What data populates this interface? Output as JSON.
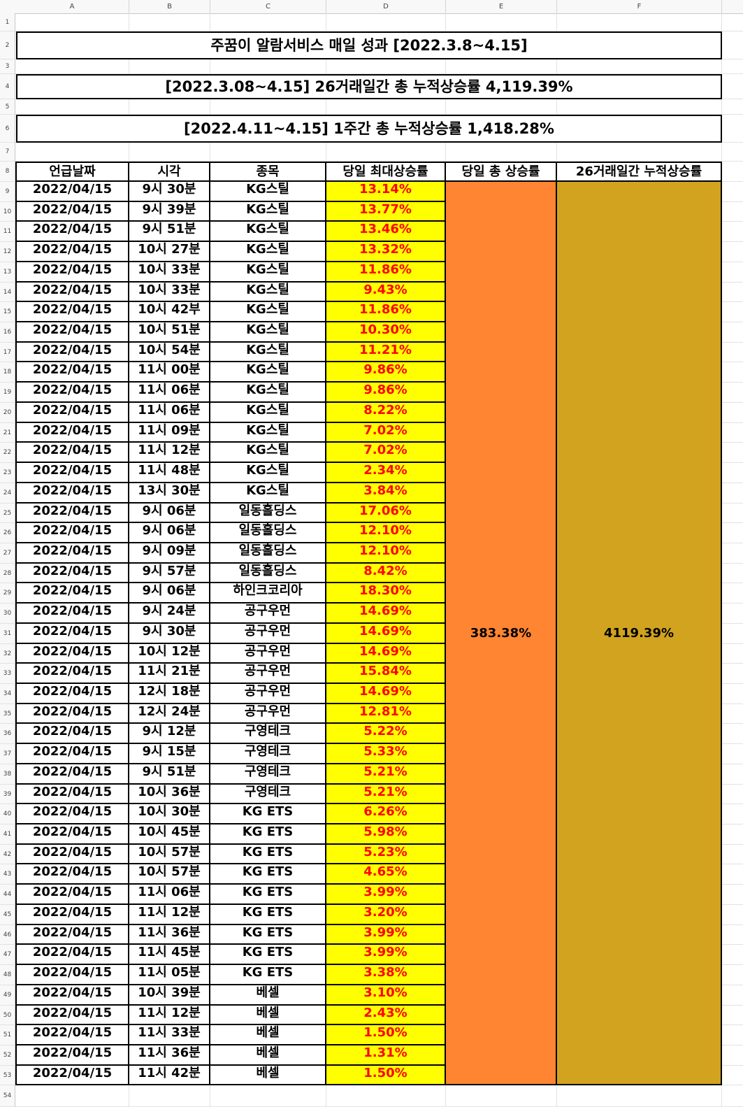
{
  "columns": [
    "A",
    "B",
    "C",
    "D",
    "E",
    "F"
  ],
  "row_numbers": [
    "1",
    "2",
    "3",
    "4",
    "5",
    "6",
    "7",
    "8",
    "9",
    "10",
    "11",
    "12",
    "13",
    "14",
    "15",
    "16",
    "17",
    "18",
    "19",
    "20",
    "21",
    "22",
    "23",
    "24",
    "25",
    "26",
    "27",
    "28",
    "29",
    "30",
    "31",
    "32",
    "33",
    "34",
    "35",
    "36",
    "37",
    "38",
    "39",
    "40",
    "41",
    "42",
    "43",
    "44",
    "45",
    "46",
    "47",
    "48",
    "49",
    "50",
    "51",
    "52",
    "53",
    "54"
  ],
  "titles": {
    "main": "주꿈이 알람서비스 매일 성과 [2022.3.8~4.15]",
    "cumulative": "[2022.3.08~4.15] 26거래일간 총 누적상승률 4,119.39%",
    "weekly": "[2022.4.11~4.15] 1주간 총 누적상승률 1,418.28%"
  },
  "table": {
    "headers": [
      "언급날짜",
      "시각",
      "종목",
      "당일 최대상승률",
      "당일 총 상승률",
      "26거래일간 누적상승률"
    ],
    "daily_total": "383.38%",
    "cumulative_total": "4119.39%",
    "rows": [
      [
        "2022/04/15",
        "9시 30분",
        "KG스틸",
        "13.14%"
      ],
      [
        "2022/04/15",
        "9시 39분",
        "KG스틸",
        "13.77%"
      ],
      [
        "2022/04/15",
        "9시 51분",
        "KG스틸",
        "13.46%"
      ],
      [
        "2022/04/15",
        "10시 27분",
        "KG스틸",
        "13.32%"
      ],
      [
        "2022/04/15",
        "10시 33분",
        "KG스틸",
        "11.86%"
      ],
      [
        "2022/04/15",
        "10시 33분",
        "KG스틸",
        "9.43%"
      ],
      [
        "2022/04/15",
        "10시 42부",
        "KG스틸",
        "11.86%"
      ],
      [
        "2022/04/15",
        "10시 51분",
        "KG스틸",
        "10.30%"
      ],
      [
        "2022/04/15",
        "10시 54분",
        "KG스틸",
        "11.21%"
      ],
      [
        "2022/04/15",
        "11시 00분",
        "KG스틸",
        "9.86%"
      ],
      [
        "2022/04/15",
        "11시 06분",
        "KG스틸",
        "9.86%"
      ],
      [
        "2022/04/15",
        "11시 06분",
        "KG스틸",
        "8.22%"
      ],
      [
        "2022/04/15",
        "11시 09분",
        "KG스틸",
        "7.02%"
      ],
      [
        "2022/04/15",
        "11시 12분",
        "KG스틸",
        "7.02%"
      ],
      [
        "2022/04/15",
        "11시 48분",
        "KG스틸",
        "2.34%"
      ],
      [
        "2022/04/15",
        "13시 30분",
        "KG스틸",
        "3.84%"
      ],
      [
        "2022/04/15",
        "9시 06분",
        "일동홀딩스",
        "17.06%"
      ],
      [
        "2022/04/15",
        "9시 06분",
        "일동홀딩스",
        "12.10%"
      ],
      [
        "2022/04/15",
        "9시 09분",
        "일동홀딩스",
        "12.10%"
      ],
      [
        "2022/04/15",
        "9시 57분",
        "일동홀딩스",
        "8.42%"
      ],
      [
        "2022/04/15",
        "9시 06분",
        "하인크코리아",
        "18.30%"
      ],
      [
        "2022/04/15",
        "9시 24분",
        "공구우먼",
        "14.69%"
      ],
      [
        "2022/04/15",
        "9시 30분",
        "공구우먼",
        "14.69%"
      ],
      [
        "2022/04/15",
        "10시 12분",
        "공구우먼",
        "14.69%"
      ],
      [
        "2022/04/15",
        "11시 21분",
        "공구우먼",
        "15.84%"
      ],
      [
        "2022/04/15",
        "12시 18분",
        "공구우먼",
        "14.69%"
      ],
      [
        "2022/04/15",
        "12시 24분",
        "공구우먼",
        "12.81%"
      ],
      [
        "2022/04/15",
        "9시 12분",
        "구영테크",
        "5.22%"
      ],
      [
        "2022/04/15",
        "9시 15분",
        "구영테크",
        "5.33%"
      ],
      [
        "2022/04/15",
        "9시 51분",
        "구영테크",
        "5.21%"
      ],
      [
        "2022/04/15",
        "10시 36분",
        "구영테크",
        "5.21%"
      ],
      [
        "2022/04/15",
        "10시 30분",
        "KG ETS",
        "6.26%"
      ],
      [
        "2022/04/15",
        "10시 45분",
        "KG ETS",
        "5.98%"
      ],
      [
        "2022/04/15",
        "10시 57분",
        "KG ETS",
        "5.23%"
      ],
      [
        "2022/04/15",
        "10시 57분",
        "KG ETS",
        "4.65%"
      ],
      [
        "2022/04/15",
        "11시 06분",
        "KG ETS",
        "3.99%"
      ],
      [
        "2022/04/15",
        "11시 12분",
        "KG ETS",
        "3.20%"
      ],
      [
        "2022/04/15",
        "11시 36분",
        "KG ETS",
        "3.99%"
      ],
      [
        "2022/04/15",
        "11시 45분",
        "KG ETS",
        "3.99%"
      ],
      [
        "2022/04/15",
        "11시 05분",
        "KG ETS",
        "3.38%"
      ],
      [
        "2022/04/15",
        "10시 39분",
        "베셀",
        "3.10%"
      ],
      [
        "2022/04/15",
        "11시 12분",
        "베셀",
        "2.43%"
      ],
      [
        "2022/04/15",
        "11시 33분",
        "베셀",
        "1.50%"
      ],
      [
        "2022/04/15",
        "11시 36분",
        "베셀",
        "1.31%"
      ],
      [
        "2022/04/15",
        "11시 42분",
        "베셀",
        "1.50%"
      ]
    ]
  },
  "colors": {
    "max_rate_fill": "#ffff00",
    "max_rate_text": "#ff0000",
    "daily_total_fill": "#ff8533",
    "cumulative_fill": "#d1a31e"
  }
}
